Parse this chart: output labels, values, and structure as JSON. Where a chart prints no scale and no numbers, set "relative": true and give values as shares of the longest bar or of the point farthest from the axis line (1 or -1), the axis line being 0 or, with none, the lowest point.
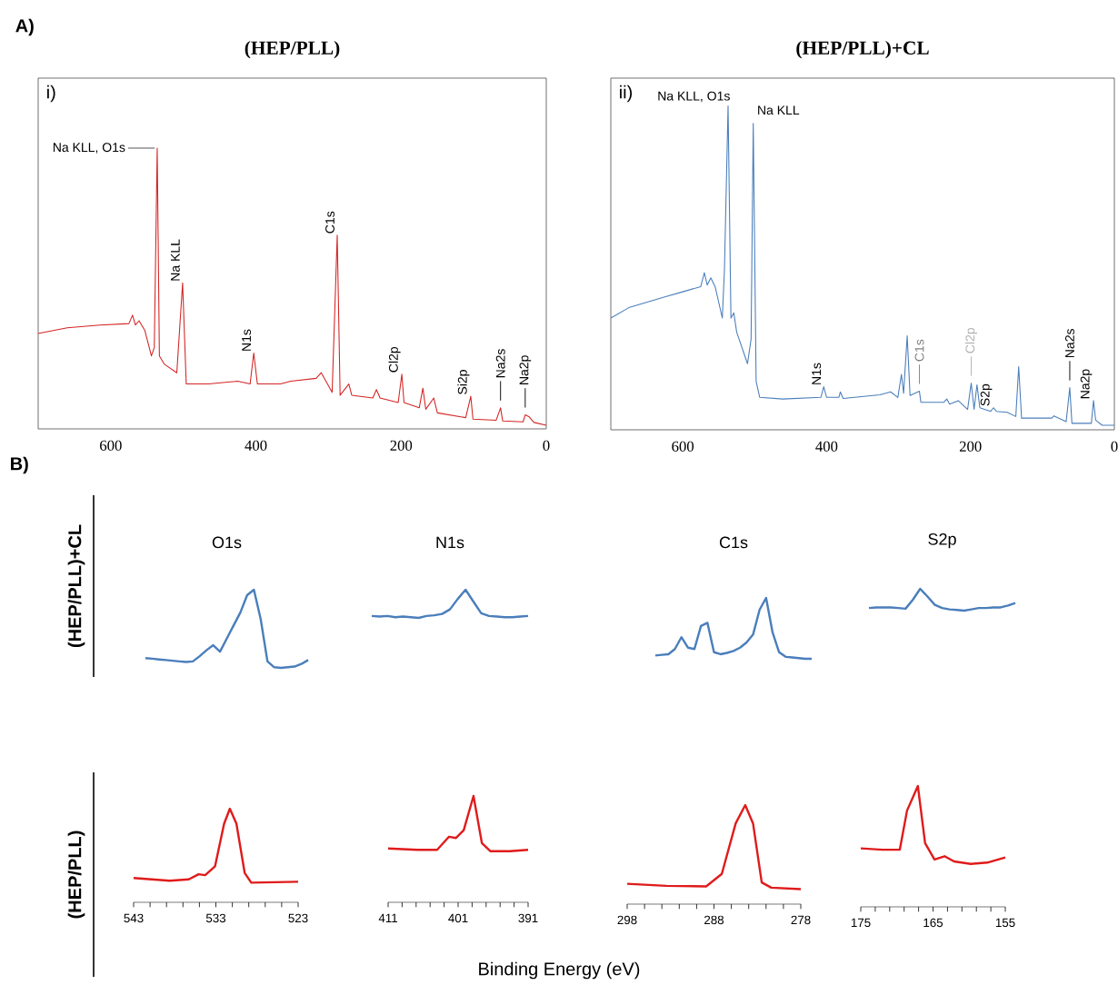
{
  "chart_data": [
    {
      "type": "line",
      "title": "(HEP/PLL)",
      "relative": true,
      "tick_labels": "x",
      "xlim": [
        700,
        0
      ],
      "xticks": [
        600,
        400,
        200,
        0
      ],
      "annotations": [
        "A)",
        "i)",
        {
          "text": "Na KLL, O1s",
          "x": 536,
          "y": 1.0
        },
        {
          "text": "Na KLL",
          "x": 501,
          "y": 0.52
        },
        {
          "text": "N1s",
          "x": 403,
          "y": 0.27
        },
        {
          "text": "C1s",
          "x": 288,
          "y": 0.69
        },
        {
          "text": "Cl2p",
          "x": 199,
          "y": 0.195
        },
        {
          "text": "Si2p",
          "x": 104,
          "y": 0.116
        },
        {
          "text": "Na2s",
          "x": 63,
          "y": 0.075
        },
        {
          "text": "Na2p",
          "x": 29,
          "y": 0.05
        }
      ],
      "series": [
        {
          "color": "#d42424",
          "x": [
            700,
            660,
            615,
            575,
            570,
            566,
            561,
            553,
            544,
            540,
            536,
            533,
            526,
            509,
            501,
            496,
            465,
            425,
            408,
            403,
            398,
            366,
            352,
            317,
            310,
            295,
            288,
            284,
            272,
            268,
            239,
            234,
            229,
            204,
            199,
            196,
            175,
            170,
            166,
            155,
            150,
            111,
            104,
            101,
            69,
            63,
            60,
            32,
            29,
            24,
            17,
            0
          ],
          "values": [
            0.34,
            0.36,
            0.37,
            0.375,
            0.405,
            0.37,
            0.385,
            0.35,
            0.26,
            0.29,
            1.0,
            0.26,
            0.23,
            0.2,
            0.52,
            0.16,
            0.16,
            0.17,
            0.16,
            0.27,
            0.16,
            0.16,
            0.17,
            0.18,
            0.2,
            0.13,
            0.69,
            0.12,
            0.16,
            0.12,
            0.11,
            0.14,
            0.11,
            0.094,
            0.195,
            0.094,
            0.075,
            0.145,
            0.07,
            0.11,
            0.057,
            0.04,
            0.116,
            0.035,
            0.031,
            0.075,
            0.028,
            0.025,
            0.05,
            0.044,
            0.023,
            0.013
          ]
        }
      ]
    },
    {
      "type": "line",
      "title": "(HEP/PLL)+CL",
      "relative": true,
      "tick_labels": "x",
      "xlim": [
        700,
        0
      ],
      "xticks": [
        600,
        400,
        200,
        0
      ],
      "annotations": [
        "ii)",
        {
          "text": "Na KLL, O1s",
          "x": 537,
          "y": 1.0
        },
        {
          "text": "Na KLL",
          "x": 502,
          "y": 0.946
        },
        {
          "text": "N1s",
          "x": 404,
          "y": 0.133
        },
        {
          "text": "C1s",
          "x": 271,
          "y": 0.119
        },
        {
          "text": "Cl2p",
          "x": 199,
          "y": 0.144
        },
        {
          "text": "S2p",
          "x": 168,
          "y": 0.068
        },
        {
          "text": "Na2s",
          "x": 62,
          "y": 0.13
        },
        {
          "text": "Na2p",
          "x": 29,
          "y": 0.09
        }
      ],
      "series": [
        {
          "color": "#4a7ebb",
          "x": [
            700,
            675,
            625,
            600,
            575,
            570,
            566,
            561,
            555,
            545,
            542,
            537,
            533,
            529,
            525,
            510,
            505,
            502,
            498,
            493,
            461,
            408,
            404,
            400,
            383,
            381,
            377,
            326,
            311,
            301,
            296,
            293,
            288,
            284,
            271,
            269,
            237,
            233,
            229,
            217,
            204,
            199,
            195,
            191,
            187,
            172,
            168,
            164,
            149,
            137,
            133,
            129,
            87,
            84,
            67,
            62,
            59,
            32,
            29,
            26,
            17,
            0
          ],
          "values": [
            0.345,
            0.377,
            0.41,
            0.426,
            0.442,
            0.485,
            0.447,
            0.469,
            0.442,
            0.345,
            0.496,
            1.0,
            0.345,
            0.361,
            0.301,
            0.204,
            0.28,
            0.946,
            0.15,
            0.1,
            0.095,
            0.1,
            0.133,
            0.1,
            0.1,
            0.117,
            0.097,
            0.108,
            0.117,
            0.1,
            0.171,
            0.112,
            0.29,
            0.106,
            0.119,
            0.085,
            0.085,
            0.095,
            0.079,
            0.09,
            0.063,
            0.144,
            0.063,
            0.139,
            0.068,
            0.057,
            0.068,
            0.057,
            0.054,
            0.041,
            0.195,
            0.036,
            0.036,
            0.043,
            0.025,
            0.13,
            0.02,
            0.02,
            0.09,
            0.03,
            0.014,
            0.014
          ]
        }
      ]
    },
    {
      "type": "line",
      "title": "O1s",
      "ylabel": "(HEP/PLL)+CL",
      "relative": true,
      "tick_labels": false,
      "annotations": [
        "B)"
      ],
      "categories": [
        null,
        null,
        null,
        null,
        null,
        null,
        null,
        null,
        null,
        null,
        null,
        null,
        null,
        null,
        null,
        null,
        null,
        null,
        null,
        null,
        null,
        null,
        null,
        null,
        null
      ],
      "series": [
        {
          "color": "#4a7ebb",
          "values": [
            0.125,
            0.117,
            0.108,
            0.1,
            0.092,
            0.083,
            0.075,
            0.083,
            0.15,
            0.225,
            0.29,
            0.208,
            0.375,
            0.542,
            0.708,
            0.93,
            1.0,
            0.625,
            0.083,
            0.008,
            0,
            0.008,
            0.017,
            0.05,
            0.1
          ]
        }
      ]
    },
    {
      "type": "line",
      "title": "N1s",
      "relative": true,
      "tick_labels": false,
      "categories": [
        null,
        null,
        null,
        null,
        null,
        null,
        null,
        null,
        null,
        null,
        null,
        null,
        null,
        null,
        null,
        null,
        null,
        null,
        null,
        null,
        null
      ],
      "series": [
        {
          "color": "#4a7ebb",
          "values": [
            0.07,
            0.047,
            0.07,
            0.023,
            0.047,
            0.023,
            0,
            0.07,
            0.093,
            0.14,
            0.302,
            0.674,
            1.0,
            0.581,
            0.163,
            0.07,
            0.047,
            0.023,
            0.023,
            0.047,
            0.07
          ]
        }
      ]
    },
    {
      "type": "line",
      "title": "C1s",
      "relative": true,
      "tick_labels": false,
      "categories": [
        null,
        null,
        null,
        null,
        null,
        null,
        null,
        null,
        null,
        null,
        null,
        null,
        null,
        null,
        null,
        null,
        null,
        null,
        null,
        null,
        null,
        null,
        null,
        null,
        null
      ],
      "series": [
        {
          "color": "#4a7ebb",
          "values": [
            0.054,
            0.065,
            0.075,
            0.161,
            0.355,
            0.183,
            0.161,
            0.538,
            0.591,
            0.108,
            0.075,
            0.097,
            0.129,
            0.183,
            0.269,
            0.398,
            0.806,
            1.0,
            0.43,
            0.108,
            0.032,
            0.022,
            0.011,
            0,
            0
          ]
        }
      ]
    },
    {
      "type": "line",
      "title": "S2p",
      "relative": true,
      "tick_labels": false,
      "categories": [
        null,
        null,
        null,
        null,
        null,
        null,
        null,
        null,
        null,
        null,
        null,
        null,
        null,
        null,
        null,
        null,
        null,
        null,
        null,
        null,
        null
      ],
      "series": [
        {
          "color": "#4a7ebb",
          "values": [
            0.118,
            0.147,
            0.147,
            0.147,
            0.118,
            0.088,
            0.5,
            1.0,
            0.647,
            0.265,
            0.118,
            0.059,
            0.029,
            0,
            0.059,
            0.118,
            0.118,
            0.147,
            0.147,
            0.235,
            0.353
          ]
        }
      ]
    },
    {
      "type": "line",
      "ylabel": "(HEP/PLL)",
      "relative": true,
      "tick_labels": "x",
      "xlim": [
        543,
        523
      ],
      "xticks": [
        543,
        {
          "value": 541,
          "label": null
        },
        {
          "value": 539,
          "label": null
        },
        {
          "value": 537,
          "label": null
        },
        {
          "value": 535,
          "label": null
        },
        533,
        {
          "value": 531,
          "label": null
        },
        {
          "value": 529,
          "label": null
        },
        {
          "value": 527,
          "label": null
        },
        {
          "value": 525,
          "label": null
        },
        523
      ],
      "series": [
        {
          "color": "#e01b1b",
          "x": [
            543,
            538.6,
            536.3,
            535.1,
            534.3,
            533.1,
            532.0,
            531.3,
            530.5,
            529.5,
            528.7,
            523
          ],
          "values": [
            0.26,
            0.23,
            0.245,
            0.3,
            0.29,
            0.385,
            0.84,
            1.0,
            0.84,
            0.315,
            0.21,
            0.22
          ]
        }
      ]
    },
    {
      "type": "line",
      "relative": true,
      "tick_labels": "x",
      "xlabel": "Binding Energy (eV)",
      "xlim": [
        411,
        391
      ],
      "xticks": [
        411,
        {
          "value": 409,
          "label": null
        },
        {
          "value": 407,
          "label": null
        },
        {
          "value": 405,
          "label": null
        },
        {
          "value": 403,
          "label": null
        },
        401,
        {
          "value": 399,
          "label": null
        },
        {
          "value": 397,
          "label": null
        },
        {
          "value": 395,
          "label": null
        },
        {
          "value": 393,
          "label": null
        },
        391
      ],
      "series": [
        {
          "color": "#e01b1b",
          "x": [
            411,
            406.8,
            404,
            402.3,
            401.3,
            400.2,
            398.8,
            397.6,
            396.4,
            393.6,
            391
          ],
          "values": [
            0.506,
            0.494,
            0.494,
            0.617,
            0.605,
            0.679,
            1.0,
            0.556,
            0.481,
            0.481,
            0.494
          ]
        }
      ]
    },
    {
      "type": "line",
      "relative": true,
      "tick_labels": "x",
      "xlim": [
        298,
        278
      ],
      "xticks": [
        298,
        {
          "value": 296,
          "label": null
        },
        {
          "value": 294,
          "label": null
        },
        {
          "value": 292,
          "label": null
        },
        {
          "value": 290,
          "label": null
        },
        288,
        {
          "value": 286,
          "label": null
        },
        {
          "value": 284,
          "label": null
        },
        {
          "value": 282,
          "label": null
        },
        {
          "value": 280,
          "label": null
        },
        278
      ],
      "series": [
        {
          "color": "#e01b1b",
          "x": [
            298,
            293.5,
            288.9,
            287.1,
            285.5,
            284.4,
            283.5,
            282.5,
            281.4,
            278
          ],
          "values": [
            0.205,
            0.185,
            0.179,
            0.305,
            0.815,
            1.0,
            0.815,
            0.219,
            0.166,
            0.152
          ]
        }
      ]
    },
    {
      "type": "line",
      "relative": true,
      "tick_labels": "x",
      "xlim": [
        175,
        155
      ],
      "xticks": [
        175,
        {
          "value": 173,
          "label": null
        },
        {
          "value": 171,
          "label": null
        },
        {
          "value": 169,
          "label": null
        },
        {
          "value": 167,
          "label": null
        },
        165,
        {
          "value": 163,
          "label": null
        },
        {
          "value": 161,
          "label": null
        },
        {
          "value": 159,
          "label": null
        },
        {
          "value": 157,
          "label": null
        },
        155
      ],
      "series": [
        {
          "color": "#e01b1b",
          "x": [
            175,
            172,
            169.6,
            168.6,
            167.1,
            166.1,
            164.8,
            163.4,
            162.1,
            159.8,
            157.5,
            155
          ],
          "values": [
            0.484,
            0.473,
            0.473,
            0.796,
            1.0,
            0.527,
            0.392,
            0.419,
            0.376,
            0.355,
            0.366,
            0.409
          ]
        }
      ]
    }
  ]
}
